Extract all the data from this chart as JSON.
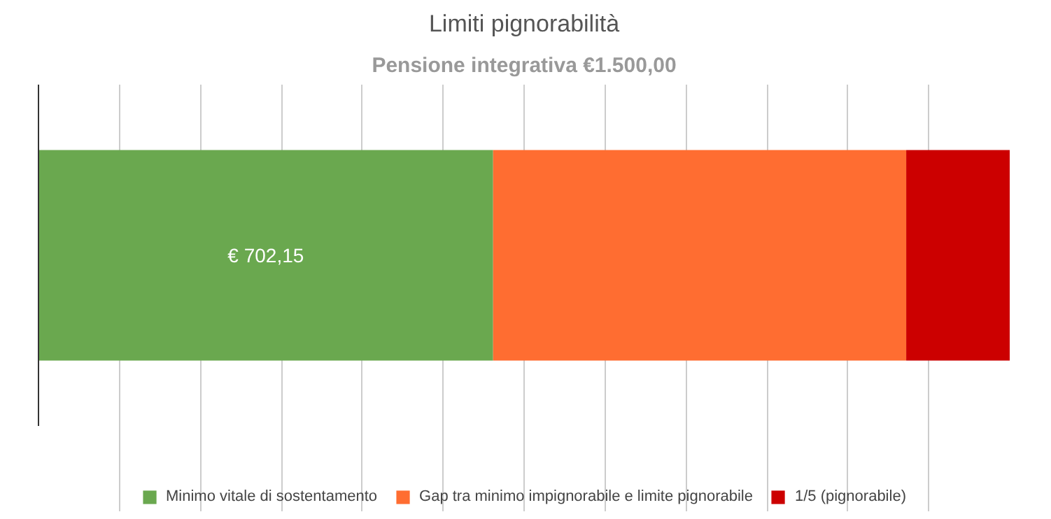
{
  "chart_data": {
    "type": "bar",
    "title": "Limiti pignorabilità",
    "subtitle": "Pensione integrativa €1.500,00",
    "orientation": "horizontal",
    "stacked": true,
    "categories": [
      null
    ],
    "series": [
      {
        "name": "Minimo vitale di sostentamento",
        "color": "#6aa84f",
        "values": [
          702.15
        ],
        "value_labels": [
          "€ 702,15"
        ]
      },
      {
        "name": "Gap tra minimo impignorabile e limite pignorabile",
        "color": "#ff6d31",
        "values": [
          638
        ]
      },
      {
        "name": "1/5 (pignorabile)",
        "color": "#cc0000",
        "values": [
          160
        ]
      }
    ],
    "xlim": [
      0,
      1500
    ],
    "xticks": [
      {
        "value": 0,
        "label": null
      },
      {
        "value": 125,
        "label": null
      },
      {
        "value": 250,
        "label": null
      },
      {
        "value": 375,
        "label": null
      },
      {
        "value": 500,
        "label": null
      },
      {
        "value": 625,
        "label": null
      },
      {
        "value": 750,
        "label": null
      },
      {
        "value": 875,
        "label": null
      },
      {
        "value": 1000,
        "label": null
      },
      {
        "value": 1125,
        "label": null
      },
      {
        "value": 1250,
        "label": null
      },
      {
        "value": 1375,
        "label": null
      }
    ],
    "grid": "x",
    "legend": "bottom"
  }
}
